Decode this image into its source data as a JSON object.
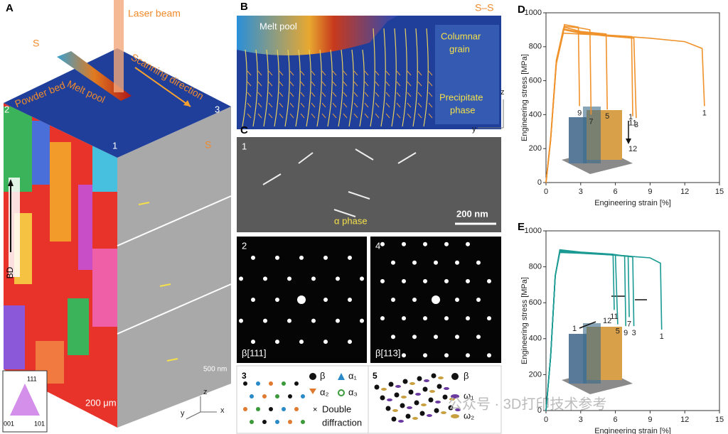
{
  "panel_a": {
    "label": "A",
    "laser": "Laser beam",
    "section_mark": "S",
    "scan": "Scanning direction",
    "melt_pool": "Melt pool",
    "powder_bed": "Powder bed",
    "face_labels": [
      "2",
      "3",
      "1"
    ],
    "section_mark_2": "S",
    "build_direction": "BD",
    "scale_right": "500 nm",
    "scale_left": "200 μm",
    "ipf": [
      "111",
      "001",
      "101"
    ],
    "axes": [
      "z",
      "y",
      "x"
    ]
  },
  "panel_b": {
    "label": "B",
    "section": "S–S",
    "melt_pool": "Melt pool",
    "columnar": [
      "Columnar",
      "grain"
    ],
    "precipitate": [
      "Precipitate",
      "phase"
    ],
    "axes": [
      "z",
      "y"
    ]
  },
  "panel_c": {
    "label": "C",
    "sub_labels": [
      "1",
      "2",
      "4",
      "3",
      "5"
    ],
    "scale": "200 nm",
    "alpha": "α phase",
    "zone_axes": [
      "β[111]",
      "β[113]"
    ],
    "legend_3": [
      "β",
      "α₁",
      "α₂",
      "α₃",
      [
        "Double",
        "diffraction"
      ]
    ],
    "legend_5": [
      "β",
      "ω₁",
      "ω₂"
    ]
  },
  "watermark": "公众号 · 3D打印技术参考",
  "chart_data": [
    {
      "type": "line",
      "label": "D",
      "xlabel": "Engineering strain [%]",
      "ylabel": "Engineering stress [MPa]",
      "color": "#f0922b",
      "xlim": [
        0,
        15
      ],
      "xticks": [
        0,
        3,
        6,
        9,
        12,
        15
      ],
      "ylim": [
        0,
        1000
      ],
      "yticks": [
        0,
        200,
        400,
        600,
        800,
        1000
      ],
      "series": [
        {
          "name": "1",
          "x": [
            0,
            0.4,
            0.9,
            1.5,
            3,
            6,
            9,
            12,
            13.5,
            13.7
          ],
          "y": [
            0,
            250,
            700,
            880,
            875,
            865,
            850,
            830,
            790,
            450
          ]
        },
        {
          "name": "3",
          "x": [
            0,
            0.4,
            0.9,
            1.5,
            3,
            5,
            7.6,
            7.8
          ],
          "y": [
            0,
            260,
            720,
            900,
            880,
            865,
            850,
            380
          ]
        },
        {
          "name": "11",
          "x": [
            0,
            0.4,
            0.9,
            1.5,
            3,
            5,
            7.4,
            7.5
          ],
          "y": [
            0,
            260,
            720,
            905,
            885,
            870,
            860,
            390
          ]
        },
        {
          "name": "5",
          "x": [
            0,
            0.4,
            0.9,
            1.6,
            3,
            5.2,
            5.3
          ],
          "y": [
            0,
            250,
            720,
            915,
            890,
            875,
            430
          ]
        },
        {
          "name": "7",
          "x": [
            0,
            0.4,
            0.9,
            1.6,
            3,
            3.8,
            3.9
          ],
          "y": [
            0,
            250,
            710,
            920,
            910,
            900,
            400
          ]
        },
        {
          "name": "9",
          "x": [
            0,
            0.4,
            0.9,
            1.6,
            2.8,
            2.9
          ],
          "y": [
            0,
            250,
            710,
            930,
            915,
            450
          ]
        }
      ],
      "annotations": [
        "1",
        "12"
      ]
    },
    {
      "type": "line",
      "label": "E",
      "xlabel": "Engineering strain [%]",
      "ylabel": "Engineering stress [MPa]",
      "color": "#1a9a93",
      "xlim": [
        0,
        15
      ],
      "xticks": [
        0,
        3,
        6,
        9,
        12,
        15
      ],
      "ylim": [
        0,
        1000
      ],
      "yticks": [
        0,
        200,
        400,
        600,
        800,
        1000
      ],
      "series": [
        {
          "name": "1",
          "x": [
            0,
            0.4,
            0.8,
            1.2,
            3,
            6,
            9,
            9.9,
            10
          ],
          "y": [
            0,
            300,
            750,
            880,
            875,
            865,
            850,
            820,
            450
          ]
        },
        {
          "name": "3",
          "x": [
            0,
            0.4,
            0.8,
            1.2,
            3,
            6,
            7.5,
            7.6
          ],
          "y": [
            0,
            300,
            750,
            885,
            880,
            865,
            855,
            470
          ]
        },
        {
          "name": "7",
          "x": [
            0,
            0.4,
            0.8,
            1.2,
            3,
            6,
            7.1,
            7.2
          ],
          "y": [
            0,
            300,
            750,
            885,
            878,
            865,
            860,
            520
          ]
        },
        {
          "name": "9",
          "x": [
            0,
            0.4,
            0.8,
            1.2,
            3,
            6,
            6.8,
            6.9
          ],
          "y": [
            0,
            300,
            750,
            890,
            880,
            868,
            860,
            470
          ]
        },
        {
          "name": "5",
          "x": [
            0,
            0.4,
            0.8,
            1.2,
            3,
            6,
            6.2
          ],
          "y": [
            0,
            300,
            750,
            890,
            880,
            865,
            480
          ]
        },
        {
          "name": "11",
          "x": [
            0,
            0.4,
            0.8,
            1.2,
            3,
            5.8,
            5.9
          ],
          "y": [
            0,
            300,
            750,
            895,
            882,
            870,
            560
          ]
        }
      ],
      "annotations": [
        "1",
        "12"
      ]
    }
  ]
}
